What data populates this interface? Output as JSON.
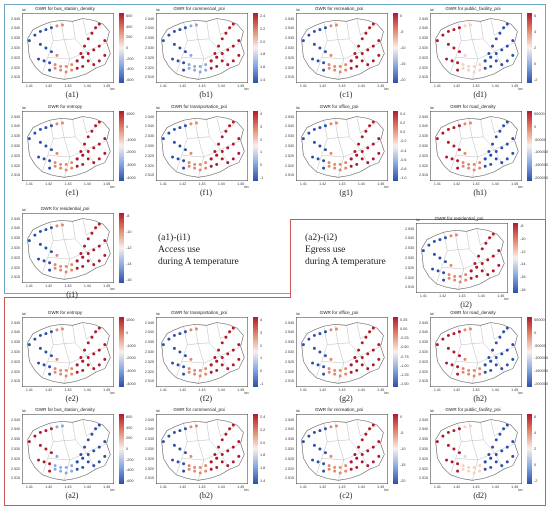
{
  "colors": {
    "access_frame": "#6fa8c7",
    "egress_frame": "#c85a5a",
    "high": "#b2182b",
    "low": "#2b4fa8",
    "mid": "#f7f0ec"
  },
  "axes": {
    "lat_label": "lat",
    "lon_label": "lon",
    "y_ticks": [
      "2.545",
      "2.540",
      "2.535",
      "2.530",
      "2.525",
      "2.520",
      "2.515"
    ],
    "x_ticks": [
      "1.41",
      "1.42",
      "1.43",
      "1.44",
      "1.45"
    ]
  },
  "notes": {
    "access": {
      "line1": "(a1)-(i1)",
      "line2": "Access use",
      "line3": "during A temperature"
    },
    "egress": {
      "line1": "(a2)-(i2)",
      "line2": "Egress use",
      "line3": "during A temperature"
    }
  },
  "panels": [
    {
      "id": "a1",
      "title": "GWR for bus_station_density",
      "label": "(a1)",
      "ticks": [
        "600",
        "400",
        "200",
        "0",
        "-200",
        "-400",
        "-600"
      ]
    },
    {
      "id": "b1",
      "title": "GWR for commercial_poi",
      "label": "(b1)",
      "ticks": [
        "2.4",
        "2.2",
        "2.0",
        "1.8",
        "1.6",
        "1.4"
      ]
    },
    {
      "id": "c1",
      "title": "GWR for recreation_poi",
      "label": "(c1)",
      "ticks": [
        "0",
        "-5",
        "-10",
        "-15",
        "-20"
      ]
    },
    {
      "id": "d1",
      "title": "GWR for public_facility_poi",
      "label": "(d1)",
      "ticks": [
        "6",
        "4",
        "2",
        "0",
        "-2"
      ]
    },
    {
      "id": "e1",
      "title": "GWR for entropy",
      "label": "(e1)",
      "ticks": [
        "1000",
        "0",
        "-1000",
        "-2000",
        "-3000",
        "-4000"
      ]
    },
    {
      "id": "f1",
      "title": "GWR for transportation_poi",
      "label": "(f1)",
      "ticks": [
        "4",
        "3",
        "2",
        "1",
        "0",
        "-1"
      ]
    },
    {
      "id": "g1",
      "title": "GWR for office_poi",
      "label": "(g1)",
      "ticks": [
        "0.4",
        "0.2",
        "0.0",
        "-0.2",
        "-0.4",
        "-0.6",
        "-0.8",
        "-1.0"
      ]
    },
    {
      "id": "h1",
      "title": "GWR for road_density",
      "label": "(h1)",
      "ticks": [
        "50000",
        "0",
        "-50000",
        "-100000",
        "-150000",
        "-200000"
      ]
    },
    {
      "id": "i1",
      "title": "GWR for residential_poi",
      "label": "(i1)",
      "ticks": [
        "-8",
        "-10",
        "-12",
        "-14",
        "-16"
      ]
    },
    {
      "id": "i2",
      "title": "GWR for residential_poi",
      "label": "(i2)",
      "ticks": [
        "-8",
        "-10",
        "-12",
        "-14",
        "-16",
        "-18"
      ]
    },
    {
      "id": "e2",
      "title": "GWR for entropy",
      "label": "(e2)",
      "ticks": [
        "1000",
        "0",
        "-1000",
        "-2000",
        "-3000",
        "-4000"
      ]
    },
    {
      "id": "f2",
      "title": "GWR for transportation_poi",
      "label": "(f2)",
      "ticks": [
        "4",
        "3",
        "2",
        "1",
        "0",
        "-1"
      ]
    },
    {
      "id": "g2",
      "title": "GWR for office_poi",
      "label": "(g2)",
      "ticks": [
        "0.25",
        "0.00",
        "-0.25",
        "-0.50",
        "-0.75",
        "-1.00",
        "-1.25",
        "-1.50"
      ]
    },
    {
      "id": "h2",
      "title": "GWR for road_density",
      "label": "(h2)",
      "ticks": [
        "50000",
        "0",
        "-50000",
        "-100000",
        "-150000",
        "-200000"
      ]
    },
    {
      "id": "a2",
      "title": "GWR for bus_station_density",
      "label": "(a2)",
      "ticks": [
        "600",
        "400",
        "200",
        "0",
        "-200",
        "-400",
        "-600"
      ]
    },
    {
      "id": "b2",
      "title": "GWR for commercial_poi",
      "label": "(b2)",
      "ticks": [
        "2.4",
        "2.2",
        "2.0",
        "1.8",
        "1.6",
        "1.4"
      ]
    },
    {
      "id": "c2",
      "title": "GWR for recreation_poi",
      "label": "(c2)",
      "ticks": [
        "0",
        "-5",
        "-10",
        "-15",
        "-20"
      ]
    },
    {
      "id": "d2",
      "title": "GWR for public_facility_poi",
      "label": "(d2)",
      "ticks": [
        "6",
        "4",
        "2",
        "0",
        "-2"
      ]
    }
  ]
}
